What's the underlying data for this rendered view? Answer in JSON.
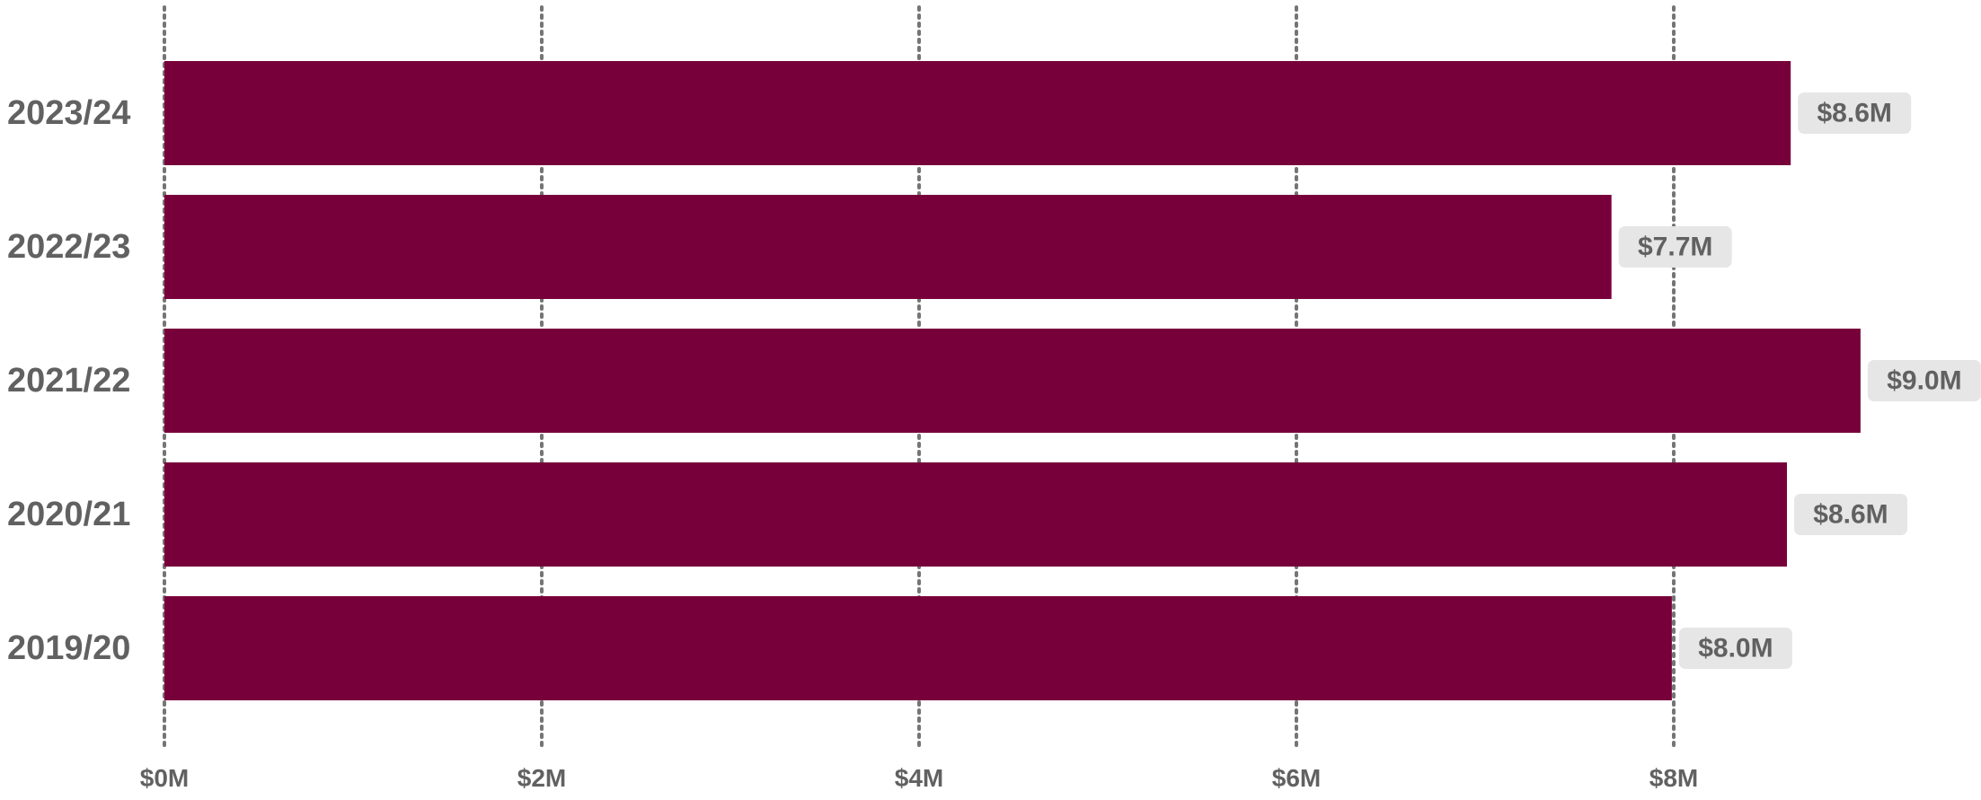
{
  "chart_data": {
    "type": "bar",
    "orientation": "horizontal",
    "categories": [
      "2023/24",
      "2022/23",
      "2021/22",
      "2020/21",
      "2019/20"
    ],
    "values": [
      8.62,
      7.67,
      8.99,
      8.6,
      7.99
    ],
    "data_labels": [
      "$8.6M",
      "$7.7M",
      "$9.0M",
      "$8.6M",
      "$8.0M"
    ],
    "x_ticks": [
      0,
      2,
      4,
      6,
      8
    ],
    "x_tick_labels": [
      "$0M",
      "$2M",
      "$4M",
      "$6M",
      "$8M"
    ],
    "xlim": [
      0,
      9.0
    ],
    "grid": "vertical-dotted",
    "title": "",
    "xlabel": "",
    "ylabel": "",
    "colors": {
      "bar": "#78003a",
      "grid": "#757575",
      "text": "#616161",
      "label_bg": "#e6e6e6"
    }
  }
}
